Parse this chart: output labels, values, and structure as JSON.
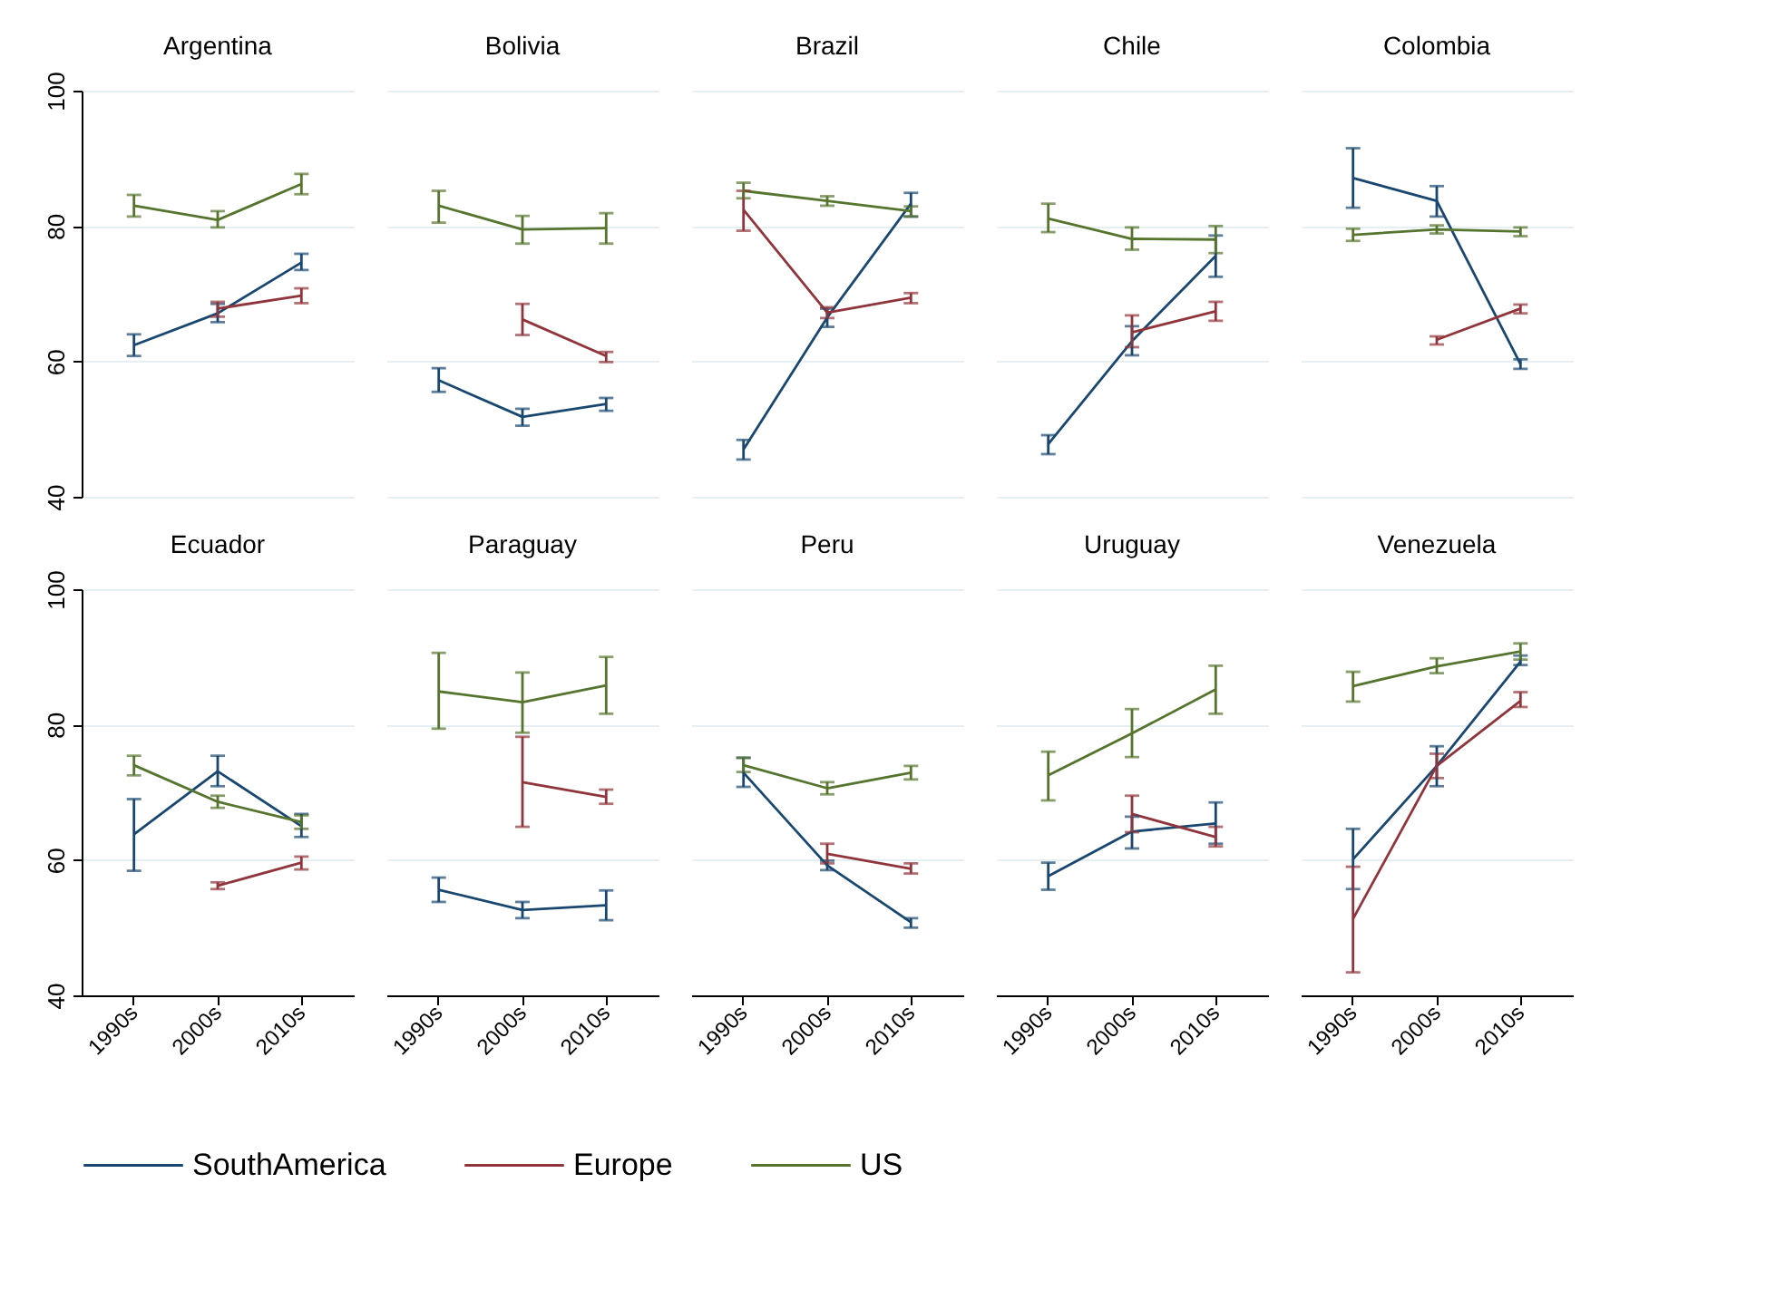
{
  "chart_data": [
    {
      "type": "line",
      "title": "Argentina",
      "categories": [
        "1990s",
        "2000s",
        "2010s"
      ],
      "ylim": [
        40,
        100
      ],
      "yticks": [
        40,
        60,
        80,
        100
      ],
      "grid": "y",
      "legend": "bottom",
      "tick_labels": "y",
      "series": [
        {
          "name": "SouthAmerica",
          "color": "#1a476f",
          "values": [
            62.4,
            67.1,
            74.6
          ],
          "errors": [
            [
              60.8,
              64.0
            ],
            [
              65.8,
              68.5
            ],
            [
              73.5,
              75.9
            ]
          ]
        },
        {
          "name": "Europe",
          "color": "#90353b",
          "values": [
            null,
            67.8,
            69.7
          ],
          "errors": [
            null,
            [
              66.6,
              68.8
            ],
            [
              68.6,
              70.8
            ]
          ]
        },
        {
          "name": "US",
          "color": "#55752f",
          "values": [
            83.0,
            80.9,
            86.2
          ],
          "errors": [
            [
              81.4,
              84.6
            ],
            [
              79.8,
              82.2
            ],
            [
              84.7,
              87.7
            ]
          ]
        }
      ]
    },
    {
      "type": "line",
      "title": "Bolivia",
      "categories": [
        "1990s",
        "2000s",
        "2010s"
      ],
      "ylim": [
        40,
        100
      ],
      "yticks": [
        40,
        60,
        80,
        100
      ],
      "grid": "y",
      "legend": "bottom",
      "tick_labels": false,
      "series": [
        {
          "name": "SouthAmerica",
          "color": "#1a476f",
          "values": [
            57.2,
            51.8,
            53.7
          ],
          "errors": [
            [
              55.5,
              59.0
            ],
            [
              50.5,
              53.0
            ],
            [
              52.7,
              54.6
            ]
          ]
        },
        {
          "name": "Europe",
          "color": "#90353b",
          "values": [
            null,
            66.2,
            60.8
          ],
          "errors": [
            null,
            [
              63.9,
              68.5
            ],
            [
              59.9,
              61.4
            ]
          ]
        },
        {
          "name": "US",
          "color": "#55752f",
          "values": [
            83.0,
            79.5,
            79.7
          ],
          "errors": [
            [
              80.5,
              85.2
            ],
            [
              77.4,
              81.5
            ],
            [
              77.4,
              81.9
            ]
          ]
        }
      ]
    },
    {
      "type": "line",
      "title": "Brazil",
      "categories": [
        "1990s",
        "2000s",
        "2010s"
      ],
      "ylim": [
        40,
        100
      ],
      "yticks": [
        40,
        60,
        80,
        100
      ],
      "grid": "y",
      "legend": "bottom",
      "tick_labels": false,
      "series": [
        {
          "name": "SouthAmerica",
          "color": "#1a476f",
          "values": [
            47.0,
            66.5,
            83.3
          ],
          "errors": [
            [
              45.5,
              48.4
            ],
            [
              65.1,
              67.8
            ],
            [
              81.4,
              84.9
            ]
          ]
        },
        {
          "name": "Europe",
          "color": "#90353b",
          "values": [
            82.4,
            67.2,
            69.4
          ],
          "errors": [
            [
              79.3,
              85.2
            ],
            [
              66.4,
              68.0
            ],
            [
              68.6,
              70.1
            ]
          ]
        },
        {
          "name": "US",
          "color": "#55752f",
          "values": [
            85.2,
            83.7,
            82.2
          ],
          "errors": [
            [
              84.1,
              86.4
            ],
            [
              83.0,
              84.4
            ],
            [
              81.4,
              82.9
            ]
          ]
        }
      ]
    },
    {
      "type": "line",
      "title": "Chile",
      "categories": [
        "1990s",
        "2000s",
        "2010s"
      ],
      "ylim": [
        40,
        100
      ],
      "yticks": [
        40,
        60,
        80,
        100
      ],
      "grid": "y",
      "legend": "bottom",
      "tick_labels": false,
      "series": [
        {
          "name": "SouthAmerica",
          "color": "#1a476f",
          "values": [
            47.8,
            63.0,
            75.6
          ],
          "errors": [
            [
              46.3,
              49.1
            ],
            [
              60.9,
              65.2
            ],
            [
              72.5,
              78.6
            ]
          ]
        },
        {
          "name": "Europe",
          "color": "#90353b",
          "values": [
            null,
            64.3,
            67.4
          ],
          "errors": [
            null,
            [
              62.1,
              66.8
            ],
            [
              66.0,
              68.8
            ]
          ]
        },
        {
          "name": "US",
          "color": "#55752f",
          "values": [
            81.1,
            78.1,
            78.0
          ],
          "errors": [
            [
              79.1,
              83.3
            ],
            [
              76.5,
              79.8
            ],
            [
              76.0,
              80.0
            ]
          ]
        }
      ]
    },
    {
      "type": "line",
      "title": "Colombia",
      "categories": [
        "1990s",
        "2000s",
        "2010s"
      ],
      "ylim": [
        40,
        100
      ],
      "yticks": [
        40,
        60,
        80,
        100
      ],
      "grid": "y",
      "legend": "bottom",
      "tick_labels": false,
      "series": [
        {
          "name": "SouthAmerica",
          "color": "#1a476f",
          "values": [
            87.1,
            83.7,
            59.6
          ],
          "errors": [
            [
              82.7,
              91.5
            ],
            [
              81.4,
              85.9
            ],
            [
              58.9,
              60.3
            ]
          ]
        },
        {
          "name": "Europe",
          "color": "#90353b",
          "values": [
            null,
            63.2,
            67.8
          ],
          "errors": [
            null,
            [
              62.5,
              63.7
            ],
            [
              67.1,
              68.4
            ]
          ]
        },
        {
          "name": "US",
          "color": "#55752f",
          "values": [
            78.7,
            79.5,
            79.2
          ],
          "errors": [
            [
              77.8,
              79.6
            ],
            [
              78.9,
              80.1
            ],
            [
              78.5,
              79.8
            ]
          ]
        }
      ]
    },
    {
      "type": "line",
      "title": "Ecuador",
      "categories": [
        "1990s",
        "2000s",
        "2010s"
      ],
      "ylim": [
        40,
        100
      ],
      "yticks": [
        40,
        60,
        80,
        100
      ],
      "grid": "y",
      "legend": "bottom",
      "series": [
        {
          "name": "SouthAmerica",
          "color": "#1a476f",
          "values": [
            63.8,
            73.1,
            65.0
          ],
          "errors": [
            [
              58.4,
              69.0
            ],
            [
              70.9,
              75.4
            ],
            [
              63.4,
              66.8
            ]
          ]
        },
        {
          "name": "Europe",
          "color": "#90353b",
          "values": [
            null,
            56.2,
            59.6
          ],
          "errors": [
            null,
            [
              55.7,
              56.7
            ],
            [
              58.6,
              60.5
            ]
          ]
        },
        {
          "name": "US",
          "color": "#55752f",
          "values": [
            74.0,
            68.6,
            65.6
          ],
          "errors": [
            [
              72.5,
              75.4
            ],
            [
              67.7,
              69.5
            ],
            [
              64.6,
              66.6
            ]
          ]
        }
      ]
    },
    {
      "type": "line",
      "title": "Paraguay",
      "categories": [
        "1990s",
        "2000s",
        "2010s"
      ],
      "ylim": [
        40,
        100
      ],
      "yticks": [
        40,
        60,
        80,
        100
      ],
      "grid": "y",
      "legend": "bottom",
      "tick_labels": "x",
      "series": [
        {
          "name": "SouthAmerica",
          "color": "#1a476f",
          "values": [
            55.6,
            52.6,
            53.3
          ],
          "errors": [
            [
              53.8,
              57.4
            ],
            [
              51.4,
              53.8
            ],
            [
              51.1,
              55.5
            ]
          ]
        },
        {
          "name": "Europe",
          "color": "#90353b",
          "values": [
            null,
            71.5,
            69.3
          ],
          "errors": [
            null,
            [
              64.9,
              78.2
            ],
            [
              68.3,
              70.4
            ]
          ]
        },
        {
          "name": "US",
          "color": "#55752f",
          "values": [
            84.9,
            83.3,
            85.8
          ],
          "errors": [
            [
              79.4,
              90.6
            ],
            [
              78.8,
              87.7
            ],
            [
              81.6,
              90.0
            ]
          ]
        }
      ]
    },
    {
      "type": "line",
      "title": "Peru",
      "categories": [
        "1990s",
        "2000s",
        "2010s"
      ],
      "ylim": [
        40,
        100
      ],
      "yticks": [
        40,
        60,
        80,
        100
      ],
      "grid": "y",
      "legend": "bottom",
      "tick_labels": "x",
      "series": [
        {
          "name": "SouthAmerica",
          "color": "#1a476f",
          "values": [
            72.9,
            59.2,
            50.8
          ],
          "errors": [
            [
              70.8,
              75.1
            ],
            [
              58.5,
              59.9
            ],
            [
              50.0,
              51.4
            ]
          ]
        },
        {
          "name": "Europe",
          "color": "#90353b",
          "values": [
            null,
            60.9,
            58.7
          ],
          "errors": [
            null,
            [
              59.5,
              62.4
            ],
            [
              58.0,
              59.5
            ]
          ]
        },
        {
          "name": "US",
          "color": "#55752f",
          "values": [
            74.0,
            70.6,
            72.9
          ],
          "errors": [
            [
              73.0,
              75.1
            ],
            [
              69.7,
              71.5
            ],
            [
              71.9,
              73.9
            ]
          ]
        }
      ]
    },
    {
      "type": "line",
      "title": "Uruguay",
      "categories": [
        "1990s",
        "2000s",
        "2010s"
      ],
      "ylim": [
        40,
        100
      ],
      "yticks": [
        40,
        60,
        80,
        100
      ],
      "grid": "y",
      "legend": "bottom",
      "tick_labels": "x",
      "series": [
        {
          "name": "SouthAmerica",
          "color": "#1a476f",
          "values": [
            57.6,
            64.2,
            65.4
          ],
          "errors": [
            [
              55.6,
              59.6
            ],
            [
              61.7,
              66.4
            ],
            [
              62.4,
              68.5
            ]
          ]
        },
        {
          "name": "Europe",
          "color": "#90353b",
          "values": [
            null,
            66.8,
            63.4
          ],
          "errors": [
            null,
            [
              64.1,
              69.5
            ],
            [
              62.0,
              64.9
            ]
          ]
        },
        {
          "name": "US",
          "color": "#55752f",
          "values": [
            72.5,
            78.7,
            85.2
          ],
          "errors": [
            [
              68.8,
              76.0
            ],
            [
              75.2,
              82.3
            ],
            [
              81.6,
              88.7
            ]
          ]
        }
      ]
    },
    {
      "type": "line",
      "title": "Venezuela",
      "categories": [
        "1990s",
        "2000s",
        "2010s"
      ],
      "ylim": [
        40,
        100
      ],
      "yticks": [
        40,
        60,
        80,
        100
      ],
      "grid": "y",
      "legend": "bottom",
      "tick_labels": "x",
      "series": [
        {
          "name": "SouthAmerica",
          "color": "#1a476f",
          "values": [
            60.1,
            73.9,
            89.3
          ],
          "errors": [
            [
              55.7,
              64.6
            ],
            [
              70.9,
              76.8
            ],
            [
              88.8,
              90.2
            ]
          ]
        },
        {
          "name": "Europe",
          "color": "#90353b",
          "values": [
            51.3,
            73.9,
            83.5
          ],
          "errors": [
            [
              43.4,
              59.0
            ],
            [
              72.1,
              75.7
            ],
            [
              82.6,
              84.8
            ]
          ]
        },
        {
          "name": "US",
          "color": "#55752f",
          "values": [
            85.7,
            88.6,
            90.8
          ],
          "errors": [
            [
              83.4,
              87.8
            ],
            [
              87.6,
              89.8
            ],
            [
              89.6,
              92.0
            ]
          ]
        }
      ]
    }
  ]
}
